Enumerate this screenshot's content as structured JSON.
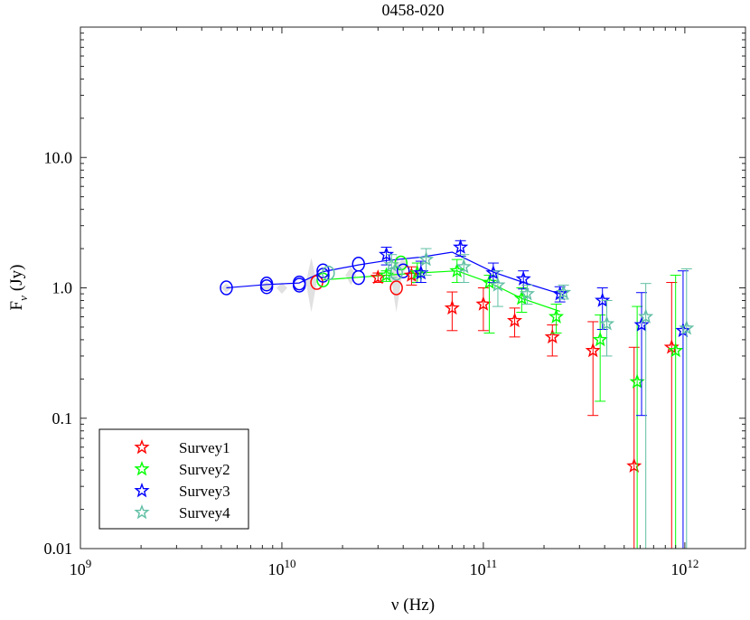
{
  "chart_data": {
    "type": "scatter",
    "title": "0458-020",
    "xlabel": "ν (Hz)",
    "ylabel_main": "F",
    "ylabel_sub": "ν",
    "ylabel_unit": "(Jy)",
    "xscale": "log",
    "yscale": "log",
    "xlim": [
      1000000000.0,
      2000000000000.0
    ],
    "ylim": [
      0.01,
      100
    ],
    "x_ticks": [
      {
        "value": 1000000000.0,
        "base": "10",
        "exp": "9"
      },
      {
        "value": 10000000000.0,
        "base": "10",
        "exp": "10"
      },
      {
        "value": 100000000000.0,
        "base": "10",
        "exp": "11"
      },
      {
        "value": 1000000000000.0,
        "base": "10",
        "exp": "12"
      }
    ],
    "y_ticks": [
      {
        "value": 0.01,
        "label": "0.01"
      },
      {
        "value": 0.1,
        "label": "0.1"
      },
      {
        "value": 1,
        "label": "1.0"
      },
      {
        "value": 10,
        "label": "10.0"
      }
    ],
    "legend_position": "bottom-left",
    "background_data": [
      [
        5300000000.0,
        1.0,
        0.92,
        1.08
      ],
      [
        8400000000.0,
        1.03,
        0.93,
        1.12
      ],
      [
        10000000000.0,
        1.0,
        0.9,
        1.1
      ],
      [
        14000000000.0,
        1.1,
        0.65,
        1.7
      ],
      [
        22000000000.0,
        1.25,
        1.05,
        1.45
      ],
      [
        37000000000.0,
        1.2,
        0.65,
        1.8
      ],
      [
        40000000000.0,
        1.5,
        1.3,
        1.7
      ],
      [
        45000000000.0,
        1.2,
        1.05,
        1.35
      ]
    ],
    "circle_points": [
      {
        "series": "Survey1",
        "points": [
          [
            14900000000.0,
            1.1
          ],
          [
            37000000000.0,
            1.0
          ]
        ]
      },
      {
        "series": "Survey2",
        "points": [
          [
            16000000000.0,
            1.15
          ],
          [
            39000000000.0,
            1.55
          ]
        ]
      },
      {
        "series": "Survey3",
        "points": [
          [
            5300000000.0,
            1.0
          ],
          [
            8400000000.0,
            1.02
          ],
          [
            8400000000.0,
            1.07
          ],
          [
            12200000000.0,
            1.05
          ],
          [
            12200000000.0,
            1.09
          ],
          [
            16000000000.0,
            1.25
          ],
          [
            16000000000.0,
            1.35
          ],
          [
            24000000000.0,
            1.2
          ],
          [
            24000000000.0,
            1.52
          ],
          [
            40000000000.0,
            1.35
          ]
        ]
      },
      {
        "series": "Survey4",
        "points": [
          [
            17000000000.0,
            1.3
          ],
          [
            37000000000.0,
            1.3
          ]
        ]
      }
    ],
    "series": [
      {
        "name": "Survey1",
        "color": "#ff0000",
        "show_line": false,
        "points": [
          [
            30000000000.0,
            1.2,
            1.1,
            1.3
          ],
          [
            44000000000.0,
            1.25,
            1.05,
            1.45
          ],
          [
            70000000000.0,
            0.7,
            0.47,
            0.93
          ],
          [
            100000000000.0,
            0.75,
            0.47,
            1.0
          ],
          [
            143000000000.0,
            0.56,
            0.42,
            0.7
          ],
          [
            220000000000.0,
            0.42,
            0.3,
            0.52
          ],
          [
            350000000000.0,
            0.33,
            0.105,
            0.55
          ],
          [
            560000000000.0,
            0.043,
            0.005,
            0.35
          ],
          [
            860000000000.0,
            0.35,
            0.005,
            1.1
          ]
        ]
      },
      {
        "name": "Survey2",
        "color": "#00ff00",
        "show_line": true,
        "points": [
          [
            33000000000.0,
            1.25,
            1.12,
            1.35
          ],
          [
            47000000000.0,
            1.3,
            1.1,
            1.55
          ],
          [
            74000000000.0,
            1.35,
            1.1,
            1.65
          ],
          [
            107000000000.0,
            1.1,
            0.45,
            1.25
          ],
          [
            155000000000.0,
            0.83,
            0.65,
            1.0
          ],
          [
            230000000000.0,
            0.6,
            0.45,
            0.75
          ],
          [
            380000000000.0,
            0.4,
            0.135,
            0.62
          ],
          [
            580000000000.0,
            0.19,
            0.005,
            0.72
          ],
          [
            900000000000.0,
            0.33,
            0.005,
            1.25
          ]
        ]
      },
      {
        "name": "Survey3",
        "color": "#0000ff",
        "show_line": true,
        "points": [
          [
            33000000000.0,
            1.8,
            1.5,
            2.05
          ],
          [
            49000000000.0,
            1.3,
            1.1,
            1.6
          ],
          [
            77000000000.0,
            2.05,
            1.75,
            2.3
          ],
          [
            112000000000.0,
            1.3,
            1.1,
            1.55
          ],
          [
            158000000000.0,
            1.17,
            0.98,
            1.35
          ],
          [
            240000000000.0,
            0.9,
            0.78,
            1.02
          ],
          [
            390000000000.0,
            0.8,
            0.48,
            1.0
          ],
          [
            610000000000.0,
            0.52,
            0.105,
            0.92
          ],
          [
            980000000000.0,
            0.47,
            0.005,
            1.35
          ]
        ]
      },
      {
        "name": "Survey4",
        "color": "#5fbfa3",
        "show_line": false,
        "points": [
          [
            35000000000.0,
            1.5,
            1.2,
            1.8
          ],
          [
            52000000000.0,
            1.65,
            1.25,
            2.0
          ],
          [
            80000000000.0,
            1.45,
            1.1,
            1.8
          ],
          [
            118000000000.0,
            1.05,
            0.72,
            1.35
          ],
          [
            165000000000.0,
            0.9,
            0.75,
            1.05
          ],
          [
            250000000000.0,
            0.92,
            0.82,
            1.05
          ],
          [
            410000000000.0,
            0.53,
            0.3,
            0.8
          ],
          [
            640000000000.0,
            0.6,
            0.005,
            1.08
          ],
          [
            1020000000000.0,
            0.49,
            0.005,
            1.4
          ]
        ]
      }
    ],
    "lines": [
      {
        "series": "Survey3",
        "color": "#0000ff",
        "points": [
          [
            5300000000.0,
            1.0
          ],
          [
            8400000000.0,
            1.06
          ],
          [
            12200000000.0,
            1.09
          ],
          [
            16000000000.0,
            1.33
          ],
          [
            24000000000.0,
            1.5
          ],
          [
            33000000000.0,
            1.62
          ],
          [
            49000000000.0,
            1.72
          ],
          [
            70000000000.0,
            1.88
          ],
          [
            112000000000.0,
            1.32
          ],
          [
            158000000000.0,
            1.1
          ],
          [
            240000000000.0,
            0.9
          ]
        ]
      },
      {
        "series": "Survey2",
        "color": "#00ff00",
        "points": [
          [
            16000000000.0,
            1.15
          ],
          [
            33000000000.0,
            1.25
          ],
          [
            47000000000.0,
            1.3
          ],
          [
            74000000000.0,
            1.35
          ],
          [
            107000000000.0,
            1.1
          ],
          [
            155000000000.0,
            0.83
          ],
          [
            240000000000.0,
            0.66
          ]
        ]
      }
    ]
  }
}
